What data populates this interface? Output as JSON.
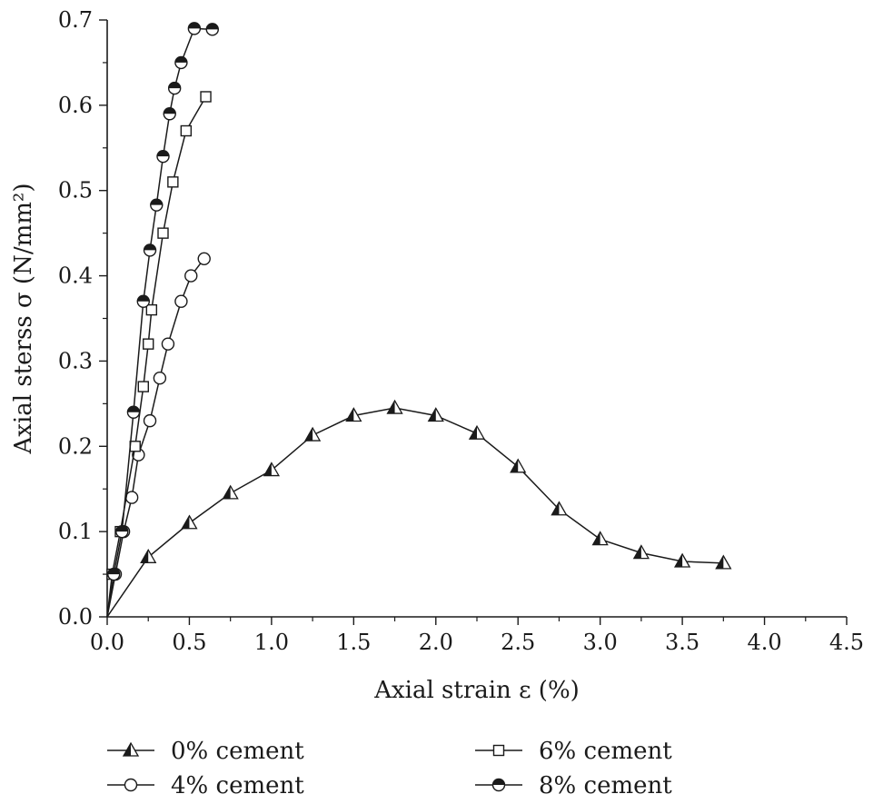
{
  "chart_data": {
    "type": "line",
    "xlabel": "Axial strain ε (%)",
    "ylabel": "Axial sterss σ (N/mm²)",
    "xlim": [
      0,
      4.5
    ],
    "ylim": [
      0,
      0.7
    ],
    "x_ticks": [
      "0.0",
      "0.5",
      "1.0",
      "1.5",
      "2.0",
      "2.5",
      "3.0",
      "3.5",
      "4.0",
      "4.5"
    ],
    "y_ticks": [
      "0.0",
      "0.1",
      "0.2",
      "0.3",
      "0.4",
      "0.5",
      "0.6",
      "0.7"
    ],
    "grid": false,
    "legend_position": "bottom",
    "series": [
      {
        "name": "0% cement",
        "marker": "triangle-half",
        "x": [
          0,
          0.25,
          0.5,
          0.75,
          1.0,
          1.25,
          1.5,
          1.75,
          2.0,
          2.25,
          2.5,
          2.75,
          3.0,
          3.25,
          3.5,
          3.75
        ],
        "y": [
          0,
          0.07,
          0.11,
          0.145,
          0.172,
          0.213,
          0.236,
          0.245,
          0.236,
          0.215,
          0.176,
          0.126,
          0.091,
          0.075,
          0.065,
          0.063
        ]
      },
      {
        "name": "4% cement",
        "marker": "circle-open",
        "x": [
          0,
          0.05,
          0.1,
          0.15,
          0.19,
          0.26,
          0.32,
          0.37,
          0.45,
          0.51,
          0.59
        ],
        "y": [
          0,
          0.05,
          0.1,
          0.14,
          0.19,
          0.23,
          0.28,
          0.32,
          0.37,
          0.4,
          0.42
        ]
      },
      {
        "name": "6% cement",
        "marker": "square-open",
        "x": [
          0,
          0.03,
          0.08,
          0.17,
          0.22,
          0.25,
          0.27,
          0.34,
          0.4,
          0.48,
          0.6
        ],
        "y": [
          0,
          0.05,
          0.1,
          0.2,
          0.27,
          0.32,
          0.36,
          0.45,
          0.51,
          0.57,
          0.61
        ]
      },
      {
        "name": "8% cement",
        "marker": "circle-half",
        "x": [
          0,
          0.04,
          0.09,
          0.16,
          0.22,
          0.26,
          0.3,
          0.34,
          0.38,
          0.41,
          0.45,
          0.53,
          0.64
        ],
        "y": [
          0,
          0.05,
          0.1,
          0.24,
          0.37,
          0.43,
          0.483,
          0.54,
          0.59,
          0.62,
          0.65,
          0.69,
          0.689
        ]
      }
    ]
  }
}
